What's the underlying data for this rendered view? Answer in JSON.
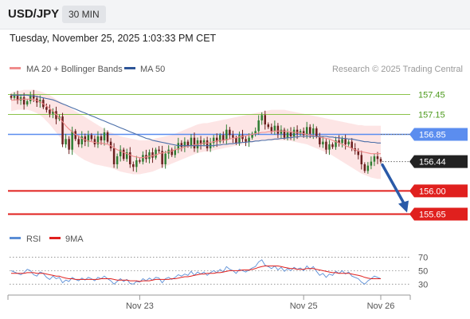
{
  "header": {
    "symbol": "USD/JPY",
    "interval": "30 MIN"
  },
  "timestamp": "Tuesday, November 25, 2025 1:03:33 PM CET",
  "credit": "Research © 2025 Trading Central",
  "colors": {
    "bullish": "#2f7d32",
    "bearish": "#6b1f1f",
    "ma20": "#f08c8c",
    "band": "#fcdede",
    "ma50": "#4a6ea8",
    "resistance": "#8bc34a",
    "resistance_text": "#4c9a1c",
    "pivot": "#5b8def",
    "support": "#e0201e",
    "arrow": "#2a5aa8",
    "rsi": "#5b8ed6",
    "rsi_ma": "#e0201e"
  },
  "chart_data": [
    {
      "type": "candlestick",
      "title": "",
      "legend": [
        {
          "name": "MA 20 + Bollinger Bands",
          "color": "#f08c8c"
        },
        {
          "name": "MA 50",
          "color": "#2e5597"
        }
      ],
      "legend_placement": "top-left",
      "x_ticks": [
        "Nov 23",
        "Nov 25",
        "Nov 26"
      ],
      "x_tick_index": [
        40,
        91,
        115
      ],
      "ylim": [
        155.5,
        157.6
      ],
      "levels": [
        {
          "label": "157.45",
          "value": 157.45,
          "kind": "resistance"
        },
        {
          "label": "157.15",
          "value": 157.15,
          "kind": "resistance"
        },
        {
          "label": "156.85",
          "value": 156.85,
          "kind": "pivot"
        },
        {
          "label": "156.00",
          "value": 156.0,
          "kind": "support"
        },
        {
          "label": "155.65",
          "value": 155.65,
          "kind": "support"
        }
      ],
      "last_price": {
        "label": "156.44",
        "value": 156.44
      },
      "forecast": {
        "from": 156.44,
        "to": 155.65
      },
      "close": [
        157.4,
        157.43,
        157.36,
        157.41,
        157.3,
        157.35,
        157.44,
        157.39,
        157.33,
        157.37,
        157.26,
        157.22,
        157.16,
        157.2,
        157.08,
        157.12,
        156.7,
        156.78,
        156.62,
        156.9,
        156.78,
        156.7,
        156.82,
        156.74,
        156.84,
        156.78,
        156.7,
        156.82,
        156.76,
        156.88,
        156.74,
        156.64,
        156.4,
        156.52,
        156.62,
        156.48,
        156.58,
        156.4,
        156.36,
        156.46,
        156.44,
        156.54,
        156.48,
        156.58,
        156.5,
        156.62,
        156.6,
        156.4,
        156.56,
        156.62,
        156.54,
        156.62,
        156.72,
        156.66,
        156.74,
        156.68,
        156.8,
        156.64,
        156.76,
        156.7,
        156.76,
        156.64,
        156.72,
        156.8,
        156.74,
        156.84,
        156.76,
        156.92,
        156.84,
        156.8,
        156.72,
        156.84,
        156.78,
        156.74,
        156.8,
        156.86,
        156.9,
        157.06,
        157.14,
        157.0,
        156.96,
        156.9,
        156.98,
        156.86,
        156.92,
        156.8,
        156.88,
        156.82,
        156.92,
        156.86,
        156.9,
        156.84,
        156.96,
        156.86,
        156.94,
        156.82,
        156.7,
        156.74,
        156.62,
        156.7,
        156.66,
        156.76,
        156.72,
        156.78,
        156.7,
        156.74,
        156.64,
        156.6,
        156.54,
        156.4,
        156.3,
        156.38,
        156.44,
        156.52,
        156.48,
        156.44
      ],
      "ma20": [
        157.36,
        157.37,
        157.37,
        157.38,
        157.38,
        157.38,
        157.38,
        157.37,
        157.36,
        157.34,
        157.31,
        157.28,
        157.24,
        157.2,
        157.15,
        157.1,
        157.04,
        156.98,
        156.93,
        156.89,
        156.85,
        156.82,
        156.79,
        156.77,
        156.75,
        156.74,
        156.73,
        156.72,
        156.72,
        156.71,
        156.7,
        156.68,
        156.65,
        156.62,
        156.6,
        156.58,
        156.56,
        156.54,
        156.52,
        156.51,
        156.5,
        156.5,
        156.51,
        156.52,
        156.53,
        156.54,
        156.56,
        156.57,
        156.58,
        156.59,
        156.6,
        156.62,
        156.63,
        156.64,
        156.66,
        156.67,
        156.68,
        156.69,
        156.7,
        156.71,
        156.72,
        156.72,
        156.73,
        156.74,
        156.75,
        156.76,
        156.76,
        156.77,
        156.78,
        156.79,
        156.8,
        156.81,
        156.82,
        156.83,
        156.84,
        156.85,
        156.86,
        156.87,
        156.88,
        156.88,
        156.89,
        156.89,
        156.9,
        156.9,
        156.9,
        156.9,
        156.89,
        156.89,
        156.88,
        156.88,
        156.87,
        156.86,
        156.85,
        156.84,
        156.83,
        156.82,
        156.81,
        156.8,
        156.79,
        156.78,
        156.76,
        156.74,
        156.72,
        156.7,
        156.68,
        156.66,
        156.64,
        156.62,
        156.6,
        156.59,
        156.58,
        156.57,
        156.56,
        156.56,
        156.56,
        156.56
      ],
      "bb_upper": [
        157.48,
        157.49,
        157.5,
        157.51,
        157.52,
        157.52,
        157.52,
        157.52,
        157.51,
        157.5,
        157.48,
        157.46,
        157.44,
        157.41,
        157.38,
        157.35,
        157.32,
        157.29,
        157.26,
        157.23,
        157.2,
        157.17,
        157.14,
        157.11,
        157.08,
        157.05,
        157.02,
        156.99,
        156.96,
        156.93,
        156.9,
        156.88,
        156.86,
        156.84,
        156.82,
        156.81,
        156.8,
        156.79,
        156.78,
        156.77,
        156.76,
        156.76,
        156.76,
        156.77,
        156.78,
        156.79,
        156.8,
        156.81,
        156.82,
        156.83,
        156.84,
        156.86,
        156.88,
        156.9,
        156.92,
        156.94,
        156.96,
        156.98,
        157.0,
        157.01,
        157.02,
        157.02,
        157.03,
        157.04,
        157.05,
        157.06,
        157.07,
        157.08,
        157.09,
        157.1,
        157.11,
        157.12,
        157.13,
        157.14,
        157.15,
        157.16,
        157.17,
        157.18,
        157.19,
        157.2,
        157.21,
        157.22,
        157.22,
        157.22,
        157.22,
        157.22,
        157.21,
        157.2,
        157.19,
        157.18,
        157.17,
        157.16,
        157.15,
        157.14,
        157.13,
        157.12,
        157.11,
        157.1,
        157.09,
        157.08,
        157.07,
        157.06,
        157.05,
        157.04,
        157.03,
        157.02,
        157.01,
        157.0,
        156.99,
        156.99,
        156.98,
        156.98,
        156.98,
        156.98,
        156.98,
        156.98
      ],
      "bb_lower": [
        157.2,
        157.21,
        157.22,
        157.22,
        157.22,
        157.22,
        157.21,
        157.19,
        157.17,
        157.14,
        157.1,
        157.05,
        157.0,
        156.94,
        156.88,
        156.82,
        156.76,
        156.7,
        156.65,
        156.6,
        156.56,
        156.52,
        156.49,
        156.46,
        156.44,
        156.42,
        156.4,
        156.39,
        156.38,
        156.37,
        156.36,
        156.35,
        156.33,
        156.31,
        156.29,
        156.28,
        156.27,
        156.26,
        156.25,
        156.25,
        156.25,
        156.26,
        156.27,
        156.28,
        156.29,
        156.31,
        156.33,
        156.35,
        156.37,
        156.39,
        156.41,
        156.43,
        156.45,
        156.47,
        156.49,
        156.51,
        156.53,
        156.55,
        156.57,
        156.58,
        156.59,
        156.59,
        156.6,
        156.61,
        156.62,
        156.63,
        156.64,
        156.65,
        156.66,
        156.67,
        156.68,
        156.69,
        156.7,
        156.71,
        156.72,
        156.73,
        156.74,
        156.75,
        156.76,
        156.76,
        156.76,
        156.76,
        156.76,
        156.76,
        156.76,
        156.76,
        156.76,
        156.75,
        156.74,
        156.73,
        156.72,
        156.71,
        156.7,
        156.68,
        156.66,
        156.64,
        156.62,
        156.6,
        156.58,
        156.56,
        156.53,
        156.5,
        156.47,
        156.44,
        156.41,
        156.38,
        156.35,
        156.32,
        156.29,
        156.26,
        156.24,
        156.22,
        156.2,
        156.19,
        156.18,
        156.18
      ],
      "ma50": [
        157.44,
        157.44,
        157.44,
        157.44,
        157.44,
        157.44,
        157.43,
        157.43,
        157.42,
        157.41,
        157.4,
        157.39,
        157.38,
        157.37,
        157.35,
        157.33,
        157.31,
        157.29,
        157.27,
        157.25,
        157.23,
        157.21,
        157.19,
        157.17,
        157.15,
        157.13,
        157.11,
        157.09,
        157.07,
        157.05,
        157.03,
        157.01,
        156.99,
        156.97,
        156.95,
        156.93,
        156.91,
        156.89,
        156.87,
        156.85,
        156.83,
        156.81,
        156.79,
        156.78,
        156.76,
        156.75,
        156.74,
        156.73,
        156.72,
        156.71,
        156.7,
        156.69,
        156.68,
        156.68,
        156.68,
        156.68,
        156.68,
        156.68,
        156.68,
        156.68,
        156.68,
        156.68,
        156.68,
        156.68,
        156.69,
        156.69,
        156.7,
        156.7,
        156.71,
        156.71,
        156.72,
        156.72,
        156.73,
        156.73,
        156.74,
        156.74,
        156.75,
        156.75,
        156.76,
        156.76,
        156.77,
        156.77,
        156.78,
        156.78,
        156.79,
        156.79,
        156.8,
        156.8,
        156.81,
        156.81,
        156.82,
        156.82,
        156.82,
        156.82,
        156.82,
        156.82,
        156.82,
        156.82,
        156.82,
        156.81,
        156.81,
        156.8,
        156.8,
        156.79,
        156.79,
        156.78,
        156.78,
        156.77,
        156.76,
        156.75,
        156.74,
        156.74,
        156.73,
        156.73,
        156.72,
        156.72
      ]
    },
    {
      "type": "line",
      "title": "",
      "legend": [
        {
          "name": "RSI",
          "color": "#5b8ed6"
        },
        {
          "name": "9MA",
          "color": "#e0201e"
        }
      ],
      "legend_placement": "top-left",
      "y_ticks": [
        70,
        50,
        30
      ],
      "ylim": [
        15,
        80
      ],
      "rsi": [
        50,
        48,
        46,
        44,
        47,
        52,
        50,
        44,
        42,
        48,
        46,
        40,
        37,
        42,
        38,
        40,
        32,
        36,
        34,
        40,
        37,
        35,
        39,
        36,
        40,
        38,
        35,
        40,
        38,
        42,
        38,
        35,
        30,
        34,
        38,
        34,
        37,
        31,
        30,
        34,
        33,
        38,
        35,
        39,
        36,
        40,
        39,
        32,
        38,
        40,
        37,
        40,
        44,
        42,
        45,
        43,
        49,
        43,
        48,
        45,
        48,
        43,
        47,
        50,
        47,
        52,
        48,
        56,
        52,
        50,
        46,
        52,
        50,
        48,
        51,
        54,
        56,
        63,
        66,
        58,
        56,
        53,
        57,
        51,
        55,
        49,
        53,
        50,
        55,
        52,
        54,
        50,
        57,
        52,
        56,
        49,
        43,
        46,
        40,
        45,
        43,
        49,
        46,
        50,
        45,
        48,
        42,
        40,
        38,
        33,
        30,
        35,
        38,
        42,
        40,
        38
      ],
      "ma9": [
        46,
        46,
        46,
        46,
        46,
        47,
        47,
        47,
        46,
        46,
        46,
        45,
        44,
        43,
        42,
        42,
        40,
        39,
        38,
        38,
        37,
        37,
        37,
        37,
        37,
        37,
        37,
        37,
        38,
        38,
        38,
        38,
        37,
        36,
        36,
        36,
        36,
        35,
        35,
        35,
        34,
        35,
        35,
        35,
        36,
        37,
        37,
        37,
        37,
        37,
        38,
        38,
        39,
        40,
        41,
        41,
        42,
        43,
        44,
        45,
        45,
        46,
        46,
        46,
        47,
        47,
        48,
        49,
        50,
        50,
        50,
        50,
        51,
        51,
        51,
        52,
        53,
        55,
        56,
        57,
        57,
        57,
        57,
        57,
        56,
        55,
        54,
        53,
        53,
        52,
        52,
        52,
        53,
        53,
        53,
        52,
        51,
        50,
        49,
        48,
        47,
        47,
        46,
        46,
        46,
        46,
        45,
        44,
        43,
        42,
        40,
        39,
        38,
        38,
        38,
        38
      ]
    }
  ]
}
